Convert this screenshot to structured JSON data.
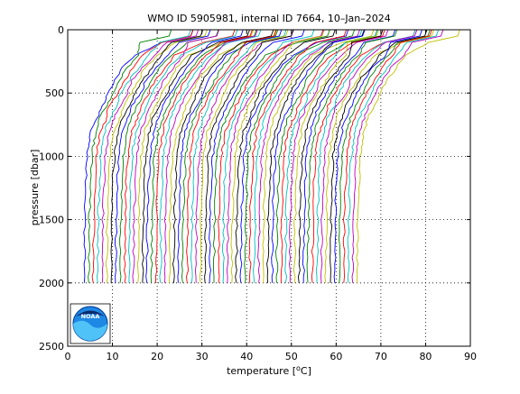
{
  "chart_data": {
    "type": "line",
    "title": "WMO ID 5905981, internal ID 7664, 10–Jan–2024",
    "xlabel_prefix": "temperature [",
    "xlabel_degree": "o",
    "xlabel_suffix": "C]",
    "ylabel": "pressure [dbar]",
    "xlim": [
      0,
      90
    ],
    "ylim": [
      0,
      2500
    ],
    "y_reversed": true,
    "xticks": [
      "0",
      "10",
      "20",
      "30",
      "40",
      "50",
      "60",
      "70",
      "80",
      "90"
    ],
    "yticks": [
      "0",
      "500",
      "1000",
      "1500",
      "2000",
      "2500"
    ],
    "grid": true,
    "profile_offset_step": 1,
    "profile_count": 62,
    "profile_start_offset": 0,
    "base_profile": {
      "pressure": [
        0,
        50,
        100,
        200,
        300,
        400,
        500,
        600,
        700,
        800,
        900,
        1000,
        1200,
        1400,
        1600,
        1800,
        2000
      ],
      "temperature": [
        25.5,
        25.0,
        18.5,
        15.0,
        12.5,
        10.5,
        9.0,
        7.5,
        6.3,
        5.3,
        4.8,
        4.4,
        4.1,
        3.9,
        3.8,
        3.75,
        3.7
      ]
    },
    "series_colors": [
      "#0000ff",
      "#008000",
      "#ff0000",
      "#00bfbf",
      "#bf00bf",
      "#bfbf00",
      "#000000"
    ]
  },
  "logo": {
    "text": "NOAA"
  }
}
